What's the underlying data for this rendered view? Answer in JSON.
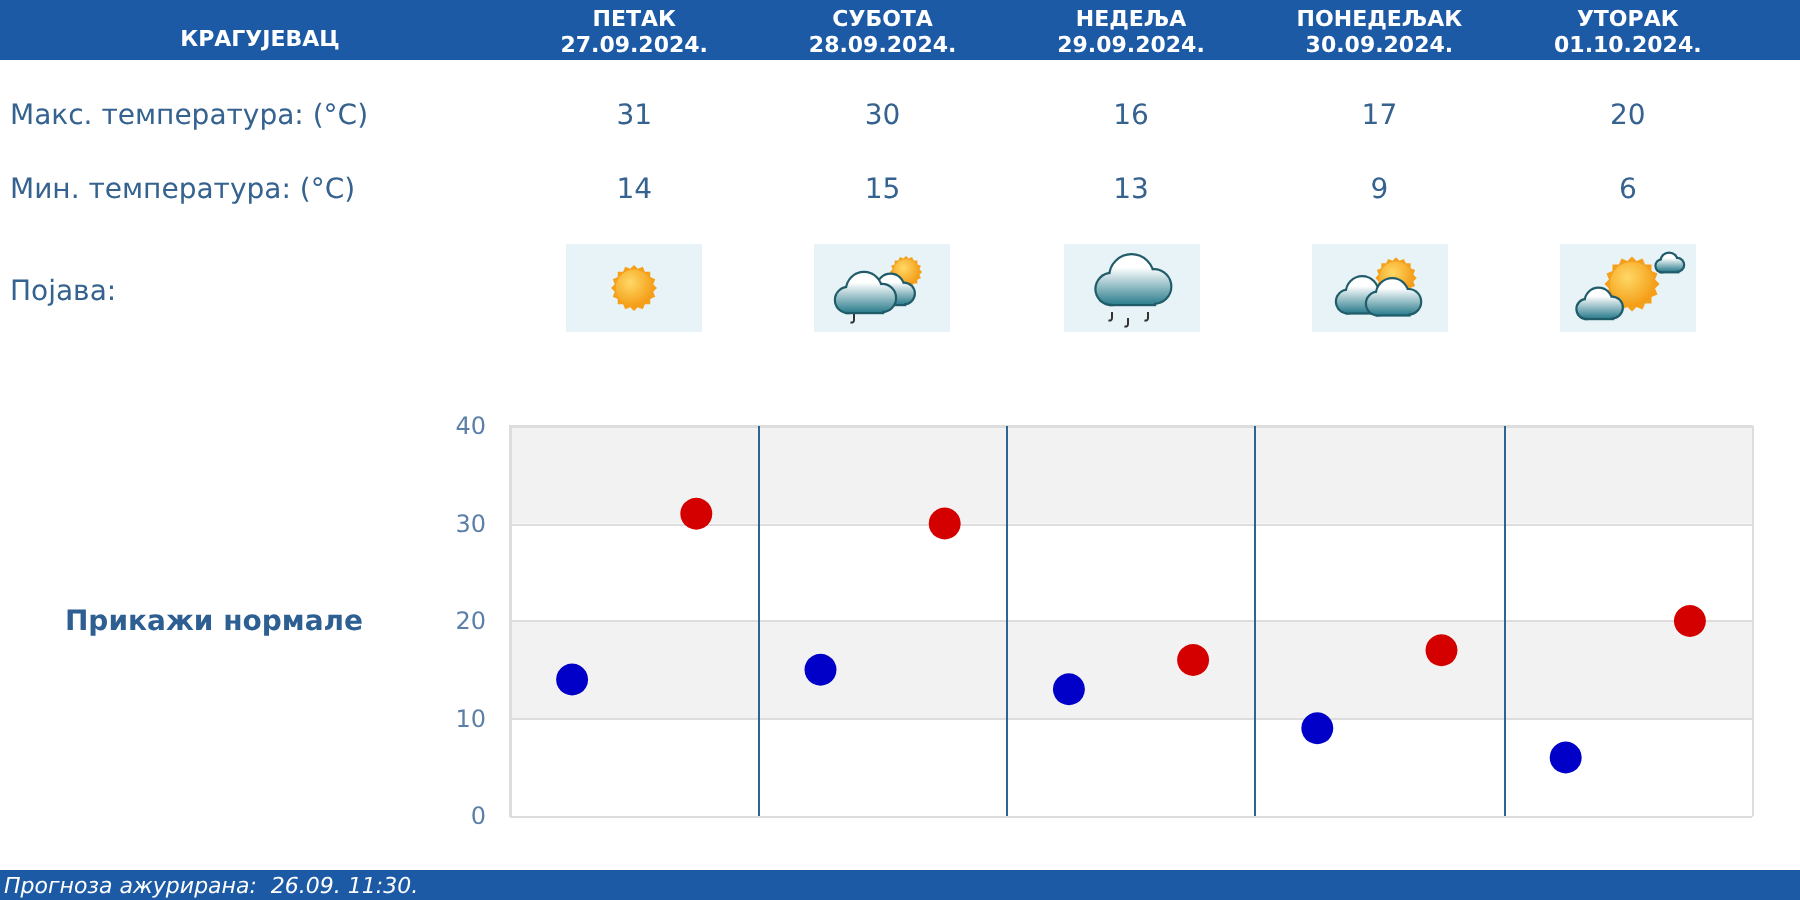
{
  "chart_data": {
    "type": "scatter",
    "title": "КРАГУЈЕВАЦ",
    "categories": [
      null,
      null,
      null,
      null,
      null
    ],
    "series": [
      {
        "color": "#d40000",
        "values": [
          31,
          30,
          16,
          17,
          20
        ]
      },
      {
        "color": "#0000c8",
        "values": [
          14,
          15,
          13,
          9,
          6
        ]
      }
    ],
    "ylim": [
      0,
      40
    ],
    "yticks": [
      0,
      10,
      20,
      30,
      40
    ],
    "grid": true,
    "data_labels": true,
    "marker": "circle",
    "annotations": [
      "ПЕТАК\n27.09.2024.",
      "СУБОТА\n28.09.2024.",
      "НЕДЕЉА\n29.09.2024.",
      "ПОНЕДЕЉАК\n30.09.2024.",
      "УТОРАК\n01.10.2024.",
      "Макс. температура: (°C)",
      "Мин. температура: (°C)",
      "Појава:",
      "Прикажи нормале",
      "Прогноза ажурирана:  26.09. 11:30."
    ]
  }
}
